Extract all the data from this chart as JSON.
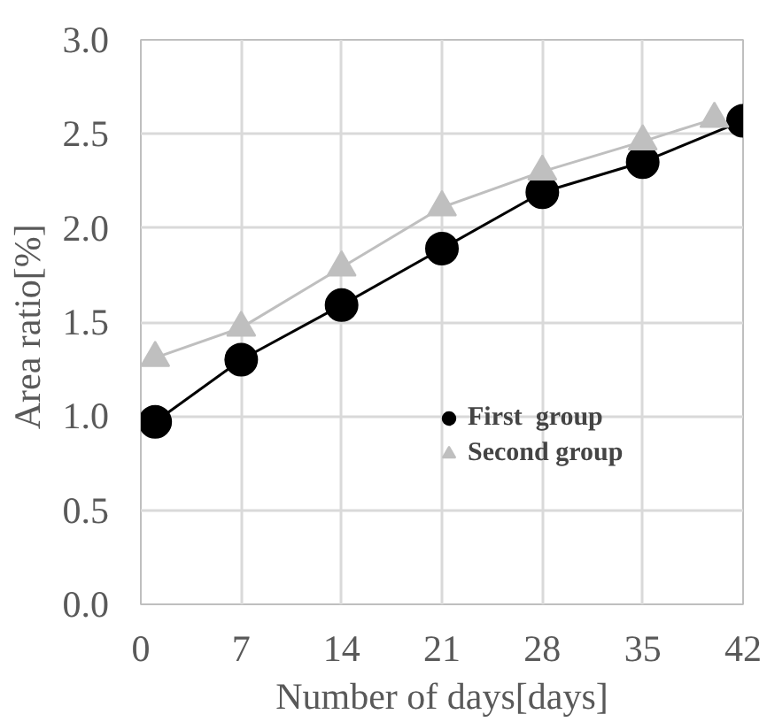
{
  "chart_data": {
    "type": "line",
    "xlabel": "Number of days[days]",
    "ylabel": "Area  ratio[%]",
    "xlim": [
      0,
      42
    ],
    "xticks": [
      0,
      7,
      14,
      21,
      28,
      35,
      42
    ],
    "ylim": [
      0,
      3
    ],
    "yticks": [
      {
        "value": 0,
        "label": "0.0"
      },
      {
        "value": 0.5,
        "label": "0.5"
      },
      {
        "value": 1,
        "label": "1.0"
      },
      {
        "value": 1.5,
        "label": "1.5"
      },
      {
        "value": 2,
        "label": "2.0"
      },
      {
        "value": 2.5,
        "label": "2.5"
      },
      {
        "value": 3,
        "label": "3.0"
      }
    ],
    "grid": true,
    "legend": "right",
    "series": [
      {
        "name": "First  group",
        "color": "#000000",
        "marker": "circle",
        "x": [
          1,
          7,
          14,
          21,
          28,
          35,
          42
        ],
        "values": [
          0.97,
          1.3,
          1.59,
          1.89,
          2.19,
          2.35,
          2.57
        ]
      },
      {
        "name": "Second group",
        "color": "#bfbfbf",
        "marker": "triangle",
        "x": [
          1,
          7,
          14,
          21,
          28,
          35,
          40
        ],
        "values": [
          1.31,
          1.47,
          1.79,
          2.11,
          2.3,
          2.46,
          2.58
        ]
      }
    ]
  }
}
